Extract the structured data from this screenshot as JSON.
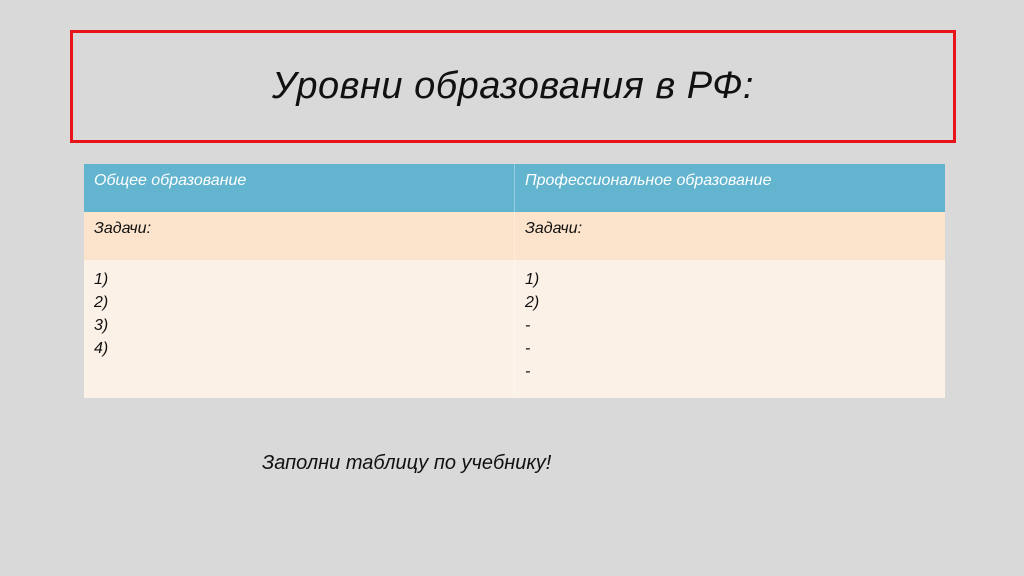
{
  "slide": {
    "title": "Уровни образования в РФ:",
    "colors": {
      "title_border": "#e8141a",
      "header_bg": "#62b4cf",
      "row2_bg": "#fbe3cc",
      "row3_bg": "#fcf1e7",
      "background": "#d9d9d9"
    },
    "table": {
      "headers": [
        "Общее образование",
        "Профессиональное образование"
      ],
      "tasks_label": [
        "Задачи:",
        "Задачи:"
      ],
      "items": [
        [
          "1)",
          "2)",
          "3)",
          "4)"
        ],
        [
          "1)",
          "2)",
          "-",
          "-",
          "-"
        ]
      ]
    },
    "footer": "Заполни таблицу по учебнику!"
  }
}
